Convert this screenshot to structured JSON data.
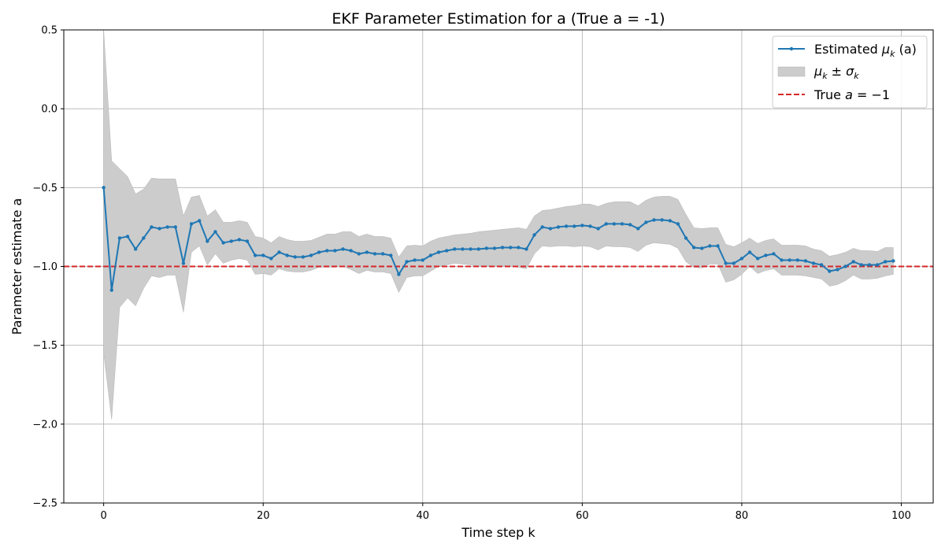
{
  "chart_data": {
    "type": "line",
    "title": "EKF Parameter Estimation for a (True a = -1)",
    "xlabel": "Time step k",
    "ylabel": "Parameter estimate a",
    "xlim": [
      -5,
      104
    ],
    "ylim": [
      -2.5,
      0.5
    ],
    "xticks": [
      0,
      20,
      40,
      60,
      80,
      100
    ],
    "yticks": [
      -2.5,
      -2.0,
      -1.5,
      -1.0,
      -0.5,
      0.0,
      0.5
    ],
    "grid": true,
    "legend_position": "top-right",
    "legend": {
      "estimate": {
        "pre": "Estimated ",
        "mu": "μ",
        "sub": "k",
        "post": " (a)"
      },
      "band": {
        "mu": "μ",
        "sub1": "k",
        "pm": " ± ",
        "sigma": "σ",
        "sub2": "k"
      },
      "truth": {
        "pre": "True ",
        "var": "a",
        "post": " = −1"
      }
    },
    "colors": {
      "estimate": "#1f77b4",
      "band": "#cccccc",
      "band_edge": "#b3b3b3",
      "truth": "#d62728",
      "grid": "#b0b0b0"
    },
    "true_value": -1,
    "series": [
      {
        "name": "Estimated μk (a)",
        "x": [
          0,
          1,
          2,
          3,
          4,
          5,
          6,
          7,
          8,
          9,
          10,
          11,
          12,
          13,
          14,
          15,
          16,
          17,
          18,
          19,
          20,
          21,
          22,
          23,
          24,
          25,
          26,
          27,
          28,
          29,
          30,
          31,
          32,
          33,
          34,
          35,
          36,
          37,
          38,
          39,
          40,
          41,
          42,
          43,
          44,
          45,
          46,
          47,
          48,
          49,
          50,
          51,
          52,
          53,
          54,
          55,
          56,
          57,
          58,
          59,
          60,
          61,
          62,
          63,
          64,
          65,
          66,
          67,
          68,
          69,
          70,
          71,
          72,
          73,
          74,
          75,
          76,
          77,
          78,
          79,
          80,
          81,
          82,
          83,
          84,
          85,
          86,
          87,
          88,
          89,
          90,
          91,
          92,
          93,
          94,
          95,
          96,
          97,
          98,
          99
        ],
        "y": [
          -0.5,
          -1.15,
          -0.82,
          -0.81,
          -0.89,
          -0.82,
          -0.75,
          -0.76,
          -0.75,
          -0.75,
          -0.98,
          -0.73,
          -0.71,
          -0.84,
          -0.78,
          -0.85,
          -0.84,
          -0.83,
          -0.84,
          -0.93,
          -0.93,
          -0.95,
          -0.91,
          -0.93,
          -0.94,
          -0.94,
          -0.93,
          -0.91,
          -0.9,
          -0.9,
          -0.89,
          -0.9,
          -0.92,
          -0.91,
          -0.92,
          -0.92,
          -0.93,
          -1.05,
          -0.97,
          -0.96,
          -0.96,
          -0.93,
          -0.91,
          -0.9,
          -0.89,
          -0.89,
          -0.89,
          -0.89,
          -0.885,
          -0.885,
          -0.88,
          -0.88,
          -0.88,
          -0.89,
          -0.8,
          -0.75,
          -0.76,
          -0.75,
          -0.745,
          -0.745,
          -0.74,
          -0.745,
          -0.76,
          -0.73,
          -0.73,
          -0.73,
          -0.735,
          -0.76,
          -0.72,
          -0.705,
          -0.705,
          -0.71,
          -0.73,
          -0.82,
          -0.88,
          -0.885,
          -0.87,
          -0.87,
          -0.98,
          -0.98,
          -0.95,
          -0.91,
          -0.95,
          -0.93,
          -0.92,
          -0.96,
          -0.96,
          -0.96,
          -0.965,
          -0.98,
          -0.99,
          -1.03,
          -1.02,
          -1.0,
          -0.97,
          -0.99,
          -0.99,
          -0.99,
          -0.97,
          -0.965
        ]
      },
      {
        "name": "μk ± σk",
        "x": [
          0,
          1,
          2,
          3,
          4,
          5,
          6,
          7,
          8,
          9,
          10,
          11,
          12,
          13,
          14,
          15,
          16,
          17,
          18,
          19,
          20,
          21,
          22,
          23,
          24,
          25,
          26,
          27,
          28,
          29,
          30,
          31,
          32,
          33,
          34,
          35,
          36,
          37,
          38,
          39,
          40,
          41,
          42,
          43,
          44,
          45,
          46,
          47,
          48,
          49,
          50,
          51,
          52,
          53,
          54,
          55,
          56,
          57,
          58,
          59,
          60,
          61,
          62,
          63,
          64,
          65,
          66,
          67,
          68,
          69,
          70,
          71,
          72,
          73,
          74,
          75,
          76,
          77,
          78,
          79,
          80,
          81,
          82,
          83,
          84,
          85,
          86,
          87,
          88,
          89,
          90,
          91,
          92,
          93,
          94,
          95,
          96,
          97,
          98,
          99
        ],
        "upper": [
          0.5,
          -0.33,
          -0.38,
          -0.43,
          -0.54,
          -0.51,
          -0.44,
          -0.445,
          -0.445,
          -0.445,
          -0.68,
          -0.56,
          -0.55,
          -0.68,
          -0.64,
          -0.72,
          -0.72,
          -0.71,
          -0.72,
          -0.81,
          -0.82,
          -0.85,
          -0.81,
          -0.83,
          -0.84,
          -0.84,
          -0.835,
          -0.815,
          -0.795,
          -0.795,
          -0.78,
          -0.78,
          -0.81,
          -0.795,
          -0.81,
          -0.81,
          -0.82,
          -0.94,
          -0.87,
          -0.865,
          -0.87,
          -0.84,
          -0.82,
          -0.81,
          -0.8,
          -0.795,
          -0.79,
          -0.78,
          -0.775,
          -0.77,
          -0.765,
          -0.76,
          -0.755,
          -0.765,
          -0.68,
          -0.645,
          -0.64,
          -0.63,
          -0.62,
          -0.615,
          -0.605,
          -0.605,
          -0.62,
          -0.6,
          -0.59,
          -0.59,
          -0.59,
          -0.615,
          -0.58,
          -0.56,
          -0.555,
          -0.555,
          -0.575,
          -0.67,
          -0.755,
          -0.76,
          -0.755,
          -0.755,
          -0.86,
          -0.875,
          -0.85,
          -0.82,
          -0.855,
          -0.835,
          -0.825,
          -0.865,
          -0.865,
          -0.865,
          -0.87,
          -0.89,
          -0.9,
          -0.935,
          -0.925,
          -0.91,
          -0.885,
          -0.9,
          -0.9,
          -0.905,
          -0.88,
          -0.88
        ],
        "lower": [
          -1.55,
          -1.97,
          -1.26,
          -1.2,
          -1.25,
          -1.14,
          -1.06,
          -1.07,
          -1.055,
          -1.055,
          -1.29,
          -0.91,
          -0.87,
          -0.99,
          -0.92,
          -0.98,
          -0.96,
          -0.95,
          -0.96,
          -1.05,
          -1.045,
          -1.055,
          -1.015,
          -1.03,
          -1.035,
          -1.035,
          -1.025,
          -1.005,
          -1.005,
          -1.005,
          -1.0,
          -1.02,
          -1.045,
          -1.025,
          -1.035,
          -1.035,
          -1.045,
          -1.165,
          -1.07,
          -1.06,
          -1.06,
          -1.03,
          -1.0,
          -0.99,
          -0.98,
          -0.985,
          -0.99,
          -1.0,
          -0.995,
          -1.0,
          -0.995,
          -1.0,
          -1.005,
          -1.015,
          -0.92,
          -0.87,
          -0.875,
          -0.87,
          -0.87,
          -0.875,
          -0.87,
          -0.875,
          -0.895,
          -0.87,
          -0.875,
          -0.875,
          -0.88,
          -0.905,
          -0.865,
          -0.85,
          -0.855,
          -0.86,
          -0.885,
          -0.97,
          -1.005,
          -1.01,
          -0.985,
          -0.985,
          -1.1,
          -1.085,
          -1.05,
          -1.0,
          -1.045,
          -1.025,
          -1.015,
          -1.055,
          -1.055,
          -1.055,
          -1.06,
          -1.07,
          -1.08,
          -1.125,
          -1.115,
          -1.09,
          -1.055,
          -1.08,
          -1.08,
          -1.075,
          -1.06,
          -1.05
        ]
      }
    ]
  }
}
